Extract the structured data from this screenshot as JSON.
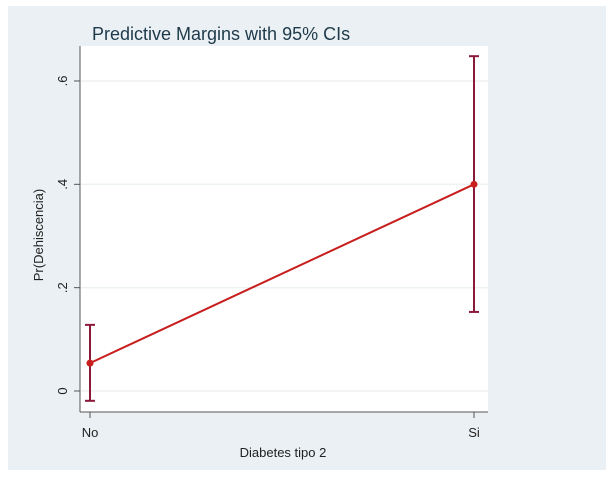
{
  "chart_data": {
    "type": "line",
    "title": "Predictive Margins with 95% CIs",
    "xlabel": "Diabetes tipo 2",
    "ylabel": "Pr(Dehiscencia)",
    "categories": [
      "No",
      "Si"
    ],
    "series": [
      {
        "name": "Pr(Dehiscencia)",
        "values": [
          0.054,
          0.4
        ],
        "ci_low": [
          -0.019,
          0.153
        ],
        "ci_high": [
          0.128,
          0.648
        ]
      }
    ],
    "yticks": [
      0,
      0.2,
      0.4,
      0.6
    ],
    "ytick_labels": [
      "0",
      ".2",
      ".4",
      ".6"
    ],
    "ylim": [
      -0.04,
      0.67
    ],
    "grid": true,
    "colors": {
      "line": "#c81e1e",
      "ci": "#8b1a3a",
      "background": "#eaf0f3",
      "plot": "#ffffff"
    }
  }
}
